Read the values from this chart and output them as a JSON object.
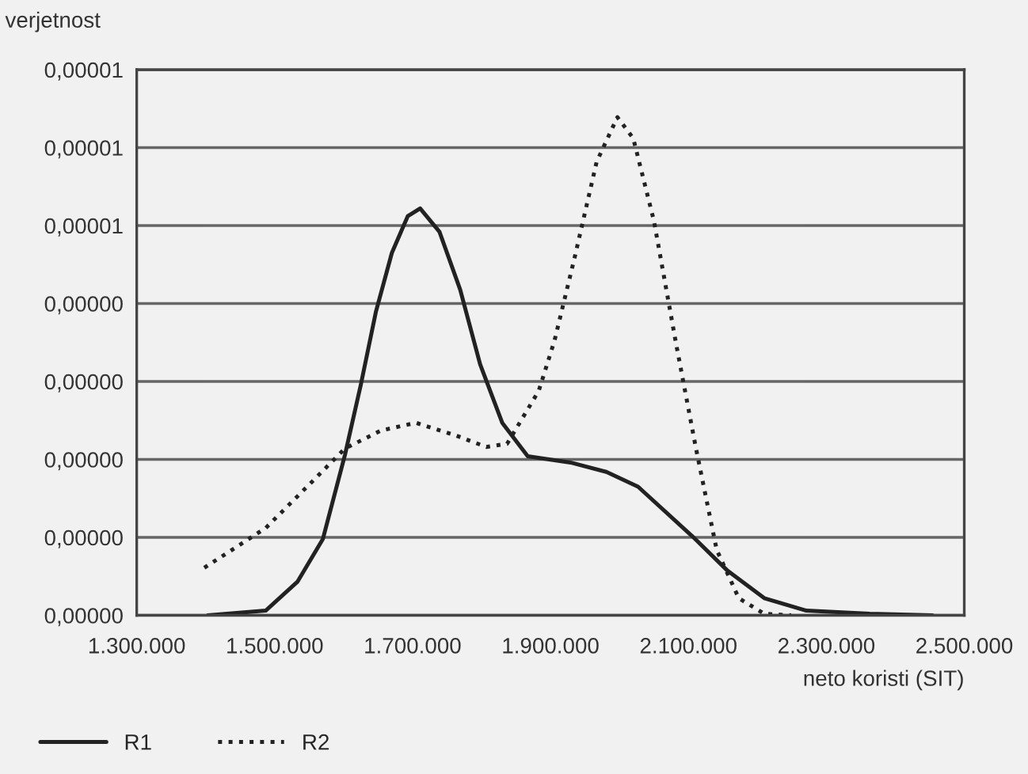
{
  "chart_data": {
    "type": "line",
    "ylabel": "verjetnost",
    "xlabel": "neto koristi (SIT)",
    "xlim": [
      1300000,
      2500000
    ],
    "xticks": [
      {
        "value": 1300000,
        "label": "1.300.000"
      },
      {
        "value": 1500000,
        "label": "1.500.000"
      },
      {
        "value": 1700000,
        "label": "1.700.000"
      },
      {
        "value": 1900000,
        "label": "1.900.000"
      },
      {
        "value": 2100000,
        "label": "2.100.000"
      },
      {
        "value": 2300000,
        "label": "2.300.000"
      },
      {
        "value": 2500000,
        "label": "2.500.000"
      }
    ],
    "ylim": [
      0,
      7e-06
    ],
    "yticks": [
      {
        "value": 0,
        "label": "0,00000"
      },
      {
        "value": 1e-06,
        "label": "0,00000"
      },
      {
        "value": 2e-06,
        "label": "0,00000"
      },
      {
        "value": 3e-06,
        "label": "0,00000"
      },
      {
        "value": 4e-06,
        "label": "0,00000"
      },
      {
        "value": 5e-06,
        "label": "0,00001"
      },
      {
        "value": 6e-06,
        "label": "0,00001"
      },
      {
        "value": 7e-06,
        "label": "0,00001"
      }
    ],
    "grid": "y",
    "legend": "bottom",
    "series": [
      {
        "name": "R1",
        "color": "#222222",
        "line_style": "solid",
        "x": [
          1403000,
          1487000,
          1533000,
          1570000,
          1602000,
          1625000,
          1647000,
          1670000,
          1693000,
          1711000,
          1739000,
          1769000,
          1798000,
          1830000,
          1867000,
          1929000,
          1981000,
          2027000,
          2105000,
          2157000,
          2210000,
          2271000,
          2363000,
          2454000
        ],
        "values": [
          0,
          6e-08,
          4.3e-07,
          9.8e-07,
          2.06e-06,
          2.96e-06,
          3.9e-06,
          4.65e-06,
          5.12e-06,
          5.22e-06,
          4.92e-06,
          4.18e-06,
          3.22e-06,
          2.47e-06,
          2.04e-06,
          1.96e-06,
          1.84e-06,
          1.65e-06,
          1.02e-06,
          5.7e-07,
          2.2e-07,
          6e-08,
          2e-08,
          0
        ]
      },
      {
        "name": "R2",
        "color": "#222222",
        "line_style": "dotted",
        "x": [
          1398000,
          1487000,
          1547000,
          1602000,
          1654000,
          1705000,
          1762000,
          1807000,
          1837000,
          1883000,
          1906000,
          1935000,
          1967000,
          1997000,
          2020000,
          2050000,
          2082000,
          2111000,
          2141000,
          2173000,
          2210000,
          2249000
        ],
        "values": [
          6.1e-07,
          1.12e-06,
          1.65e-06,
          2.14e-06,
          2.37e-06,
          2.47e-06,
          2.31e-06,
          2.16e-06,
          2.2e-06,
          2.88e-06,
          3.53e-06,
          4.59e-06,
          5.82e-06,
          6.39e-06,
          6.12e-06,
          5.06e-06,
          3.49e-06,
          2.14e-06,
          8.4e-07,
          2.2e-07,
          2e-08,
          0
        ]
      }
    ]
  }
}
